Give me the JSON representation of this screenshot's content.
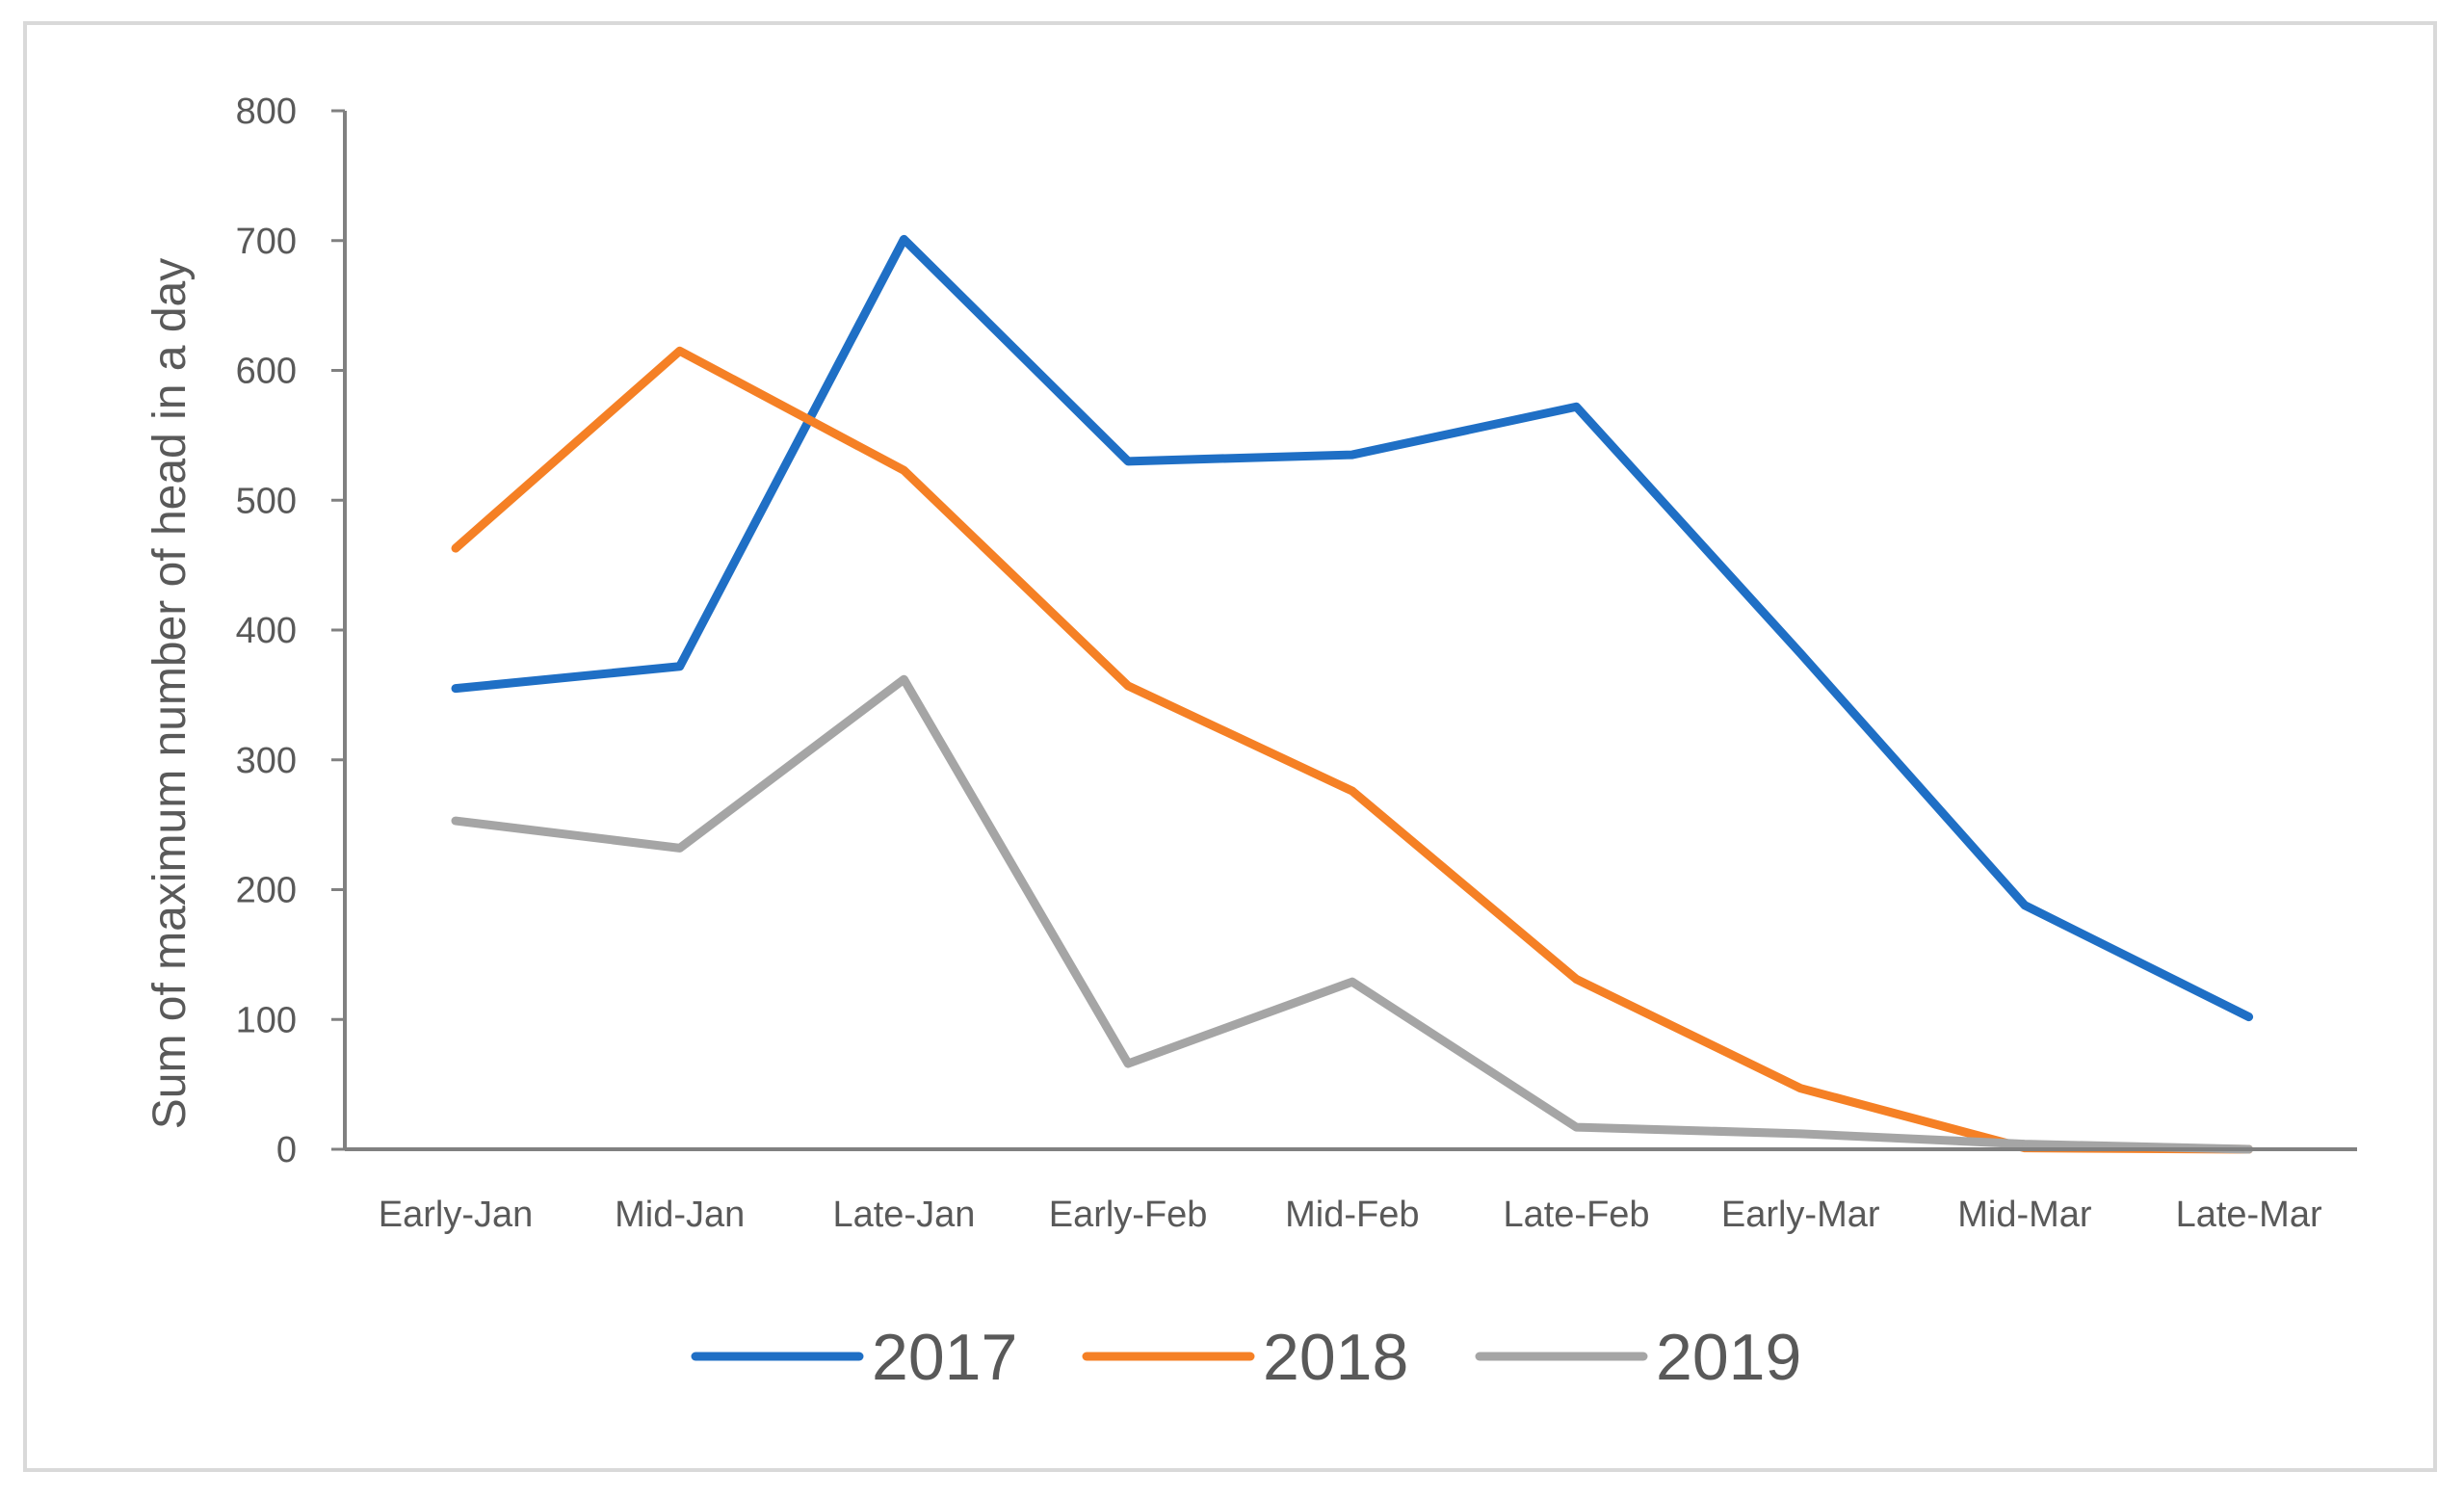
{
  "chart_data": {
    "type": "line",
    "title": "",
    "xlabel": "",
    "ylabel": "Sum of maximum number of head in a day",
    "ylim": [
      0,
      800
    ],
    "yticks": [
      0,
      100,
      200,
      300,
      400,
      500,
      600,
      700,
      800
    ],
    "grid": false,
    "legend_position": "bottom",
    "categories": [
      "Early-Jan",
      "Mid-Jan",
      "Late-Jan",
      "Early-Feb",
      "Mid-Feb",
      "Late-Feb",
      "Early-Mar",
      "Mid-Mar",
      "Late-Mar"
    ],
    "series": [
      {
        "name": "2017",
        "color": "#1f6fc5",
        "values": [
          355,
          372,
          701,
          530,
          535,
          572,
          382,
          188,
          102
        ]
      },
      {
        "name": "2018",
        "color": "#f58025",
        "values": [
          463,
          615,
          523,
          357,
          276,
          131,
          47,
          1,
          0
        ]
      },
      {
        "name": "2019",
        "color": "#a5a5a5",
        "values": [
          253,
          232,
          362,
          66,
          129,
          17,
          12,
          4,
          0
        ]
      }
    ]
  }
}
